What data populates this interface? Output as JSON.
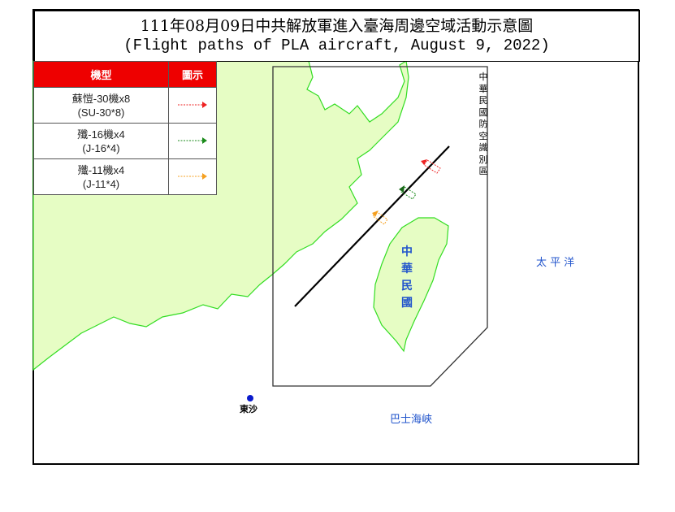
{
  "title": {
    "line1": "111年08月09日中共解放軍進入臺海周邊空域活動示意圖",
    "line2": "(Flight paths of PLA aircraft, August 9, 2022)"
  },
  "legend": {
    "header_type": "機型",
    "header_icon": "圖示",
    "items": [
      {
        "name_zh": "蘇愷-30機x8",
        "name_en": "(SU-30*8)",
        "color": "#ee2222"
      },
      {
        "name_zh": "殲-16機x4",
        "name_en": "(J-16*4)",
        "color": "#1a8a1a"
      },
      {
        "name_zh": "殲-11機x4",
        "name_en": "(J-11*4)",
        "color": "#f5a020"
      }
    ]
  },
  "map": {
    "adiz_label": "中華民國防空識別區",
    "taiwan_label": "中華民國",
    "pacific_label": "太 平 洋",
    "bashi_label": "巴士海峽",
    "dongsha_label": "東沙",
    "land_color": "#e6fdc4",
    "coast_color": "#33dd22",
    "label_blue": "#2255cc"
  }
}
